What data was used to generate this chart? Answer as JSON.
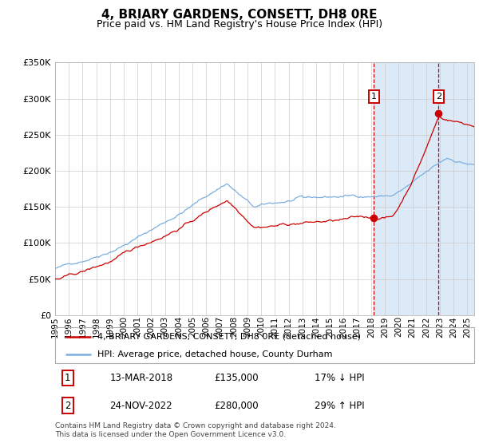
{
  "title": "4, BRIARY GARDENS, CONSETT, DH8 0RE",
  "subtitle": "Price paid vs. HM Land Registry's House Price Index (HPI)",
  "ylim": [
    0,
    350000
  ],
  "yticks": [
    0,
    50000,
    100000,
    150000,
    200000,
    250000,
    300000,
    350000
  ],
  "ytick_labels": [
    "£0",
    "£50K",
    "£100K",
    "£150K",
    "£200K",
    "£250K",
    "£300K",
    "£350K"
  ],
  "xlim_start": 1995.0,
  "xlim_end": 2025.5,
  "xtick_years": [
    1995,
    1996,
    1997,
    1998,
    1999,
    2000,
    2001,
    2002,
    2003,
    2004,
    2005,
    2006,
    2007,
    2008,
    2009,
    2010,
    2011,
    2012,
    2013,
    2014,
    2015,
    2016,
    2017,
    2018,
    2019,
    2020,
    2021,
    2022,
    2023,
    2024,
    2025
  ],
  "hpi_color": "#7aafdf",
  "property_color": "#cc0000",
  "shaded_region_color": "#dce9f7",
  "grid_color": "#cccccc",
  "sale1_date": 2018.19,
  "sale1_price": 135000,
  "sale1_label": "1",
  "sale2_date": 2022.9,
  "sale2_price": 280000,
  "sale2_label": "2",
  "legend_property": "4, BRIARY GARDENS, CONSETT, DH8 0RE (detached house)",
  "legend_hpi": "HPI: Average price, detached house, County Durham",
  "annotation1_date": "13-MAR-2018",
  "annotation1_price": "£135,000",
  "annotation1_hpi": "17% ↓ HPI",
  "annotation2_date": "24-NOV-2022",
  "annotation2_price": "£280,000",
  "annotation2_hpi": "29% ↑ HPI",
  "footer": "Contains HM Land Registry data © Crown copyright and database right 2024.\nThis data is licensed under the Open Government Licence v3.0."
}
